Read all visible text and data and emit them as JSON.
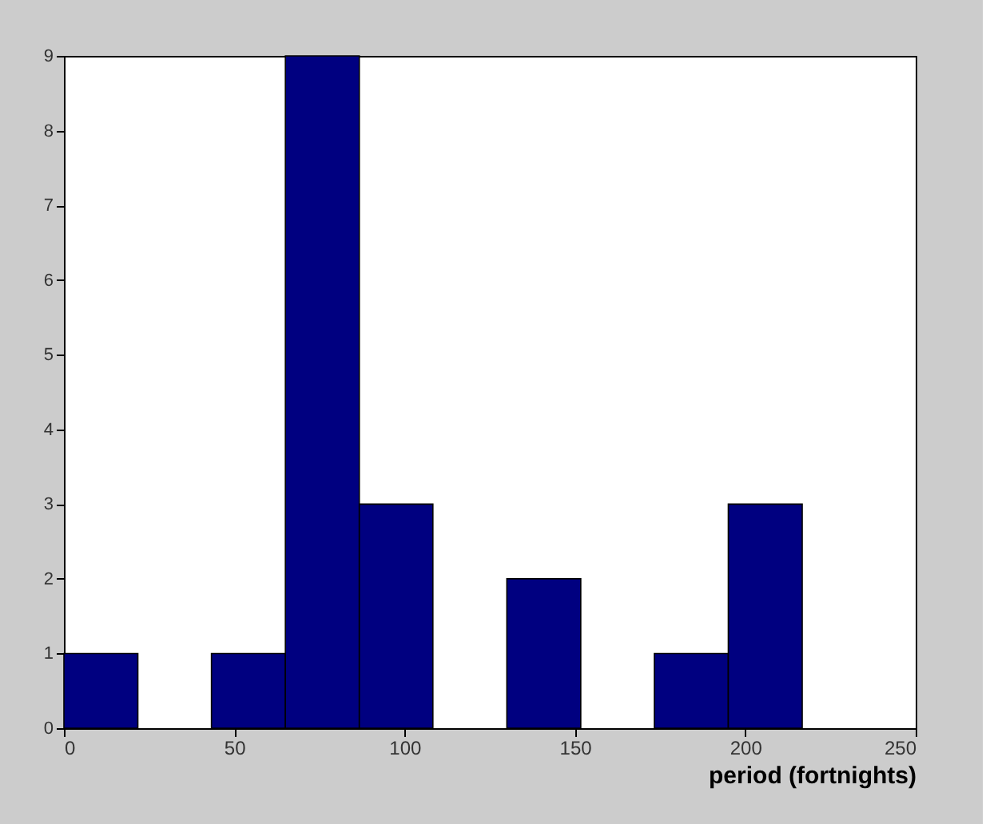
{
  "chart_data": {
    "type": "histogram",
    "xlabel": "period (fortnights)",
    "bins": [
      0,
      21.7,
      43.3,
      65,
      86.7,
      108.3,
      130,
      151.7,
      173.3,
      195,
      216.7
    ],
    "values": [
      1,
      0,
      1,
      9,
      3,
      0,
      2,
      0,
      1,
      3
    ],
    "color": "#000080",
    "xlim": [
      0,
      250
    ],
    "xticks": [
      0,
      50,
      100,
      150,
      200,
      250
    ],
    "ylim": [
      0,
      9
    ],
    "yticks": [
      0,
      1,
      2,
      3,
      4,
      5,
      6,
      7,
      8,
      9
    ],
    "grid": false
  }
}
